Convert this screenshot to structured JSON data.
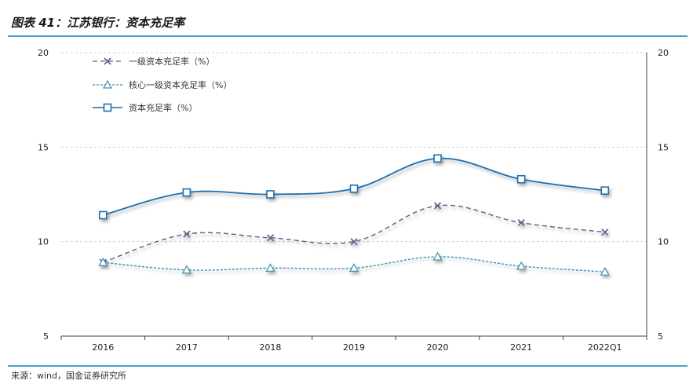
{
  "header": {
    "title": "图表 41：江苏银行：资本充足率"
  },
  "footer": {
    "source": "来源：wind，国金证券研究所"
  },
  "chart_data": {
    "type": "line",
    "title": "图表 41：江苏银行：资本充足率",
    "xlabel": "",
    "ylabel": "",
    "categories": [
      "2016",
      "2017",
      "2018",
      "2019",
      "2020",
      "2021",
      "2022Q1"
    ],
    "y_ticks": [
      "5",
      "10",
      "15",
      "20"
    ],
    "ylim": [
      5,
      20
    ],
    "y2lim": [
      5,
      20
    ],
    "grid": "horizontal dashed",
    "legend_position": "top-left",
    "series": [
      {
        "name": "一级资本充足率（%）",
        "values": [
          8.9,
          10.4,
          10.2,
          10.0,
          11.9,
          11.0,
          10.5
        ],
        "color": "#5c5f8a",
        "marker": "x",
        "line": "dashed"
      },
      {
        "name": "核心一级资本充足率（%）",
        "values": [
          8.9,
          8.5,
          8.6,
          8.6,
          9.2,
          8.7,
          8.4
        ],
        "color": "#3e8fb0",
        "marker": "triangle",
        "line": "dotted"
      },
      {
        "name": "资本充足率（%）",
        "values": [
          11.4,
          12.6,
          12.5,
          12.8,
          14.4,
          13.3,
          12.7
        ],
        "color": "#1f6fb0",
        "marker": "square",
        "line": "solid"
      }
    ]
  }
}
